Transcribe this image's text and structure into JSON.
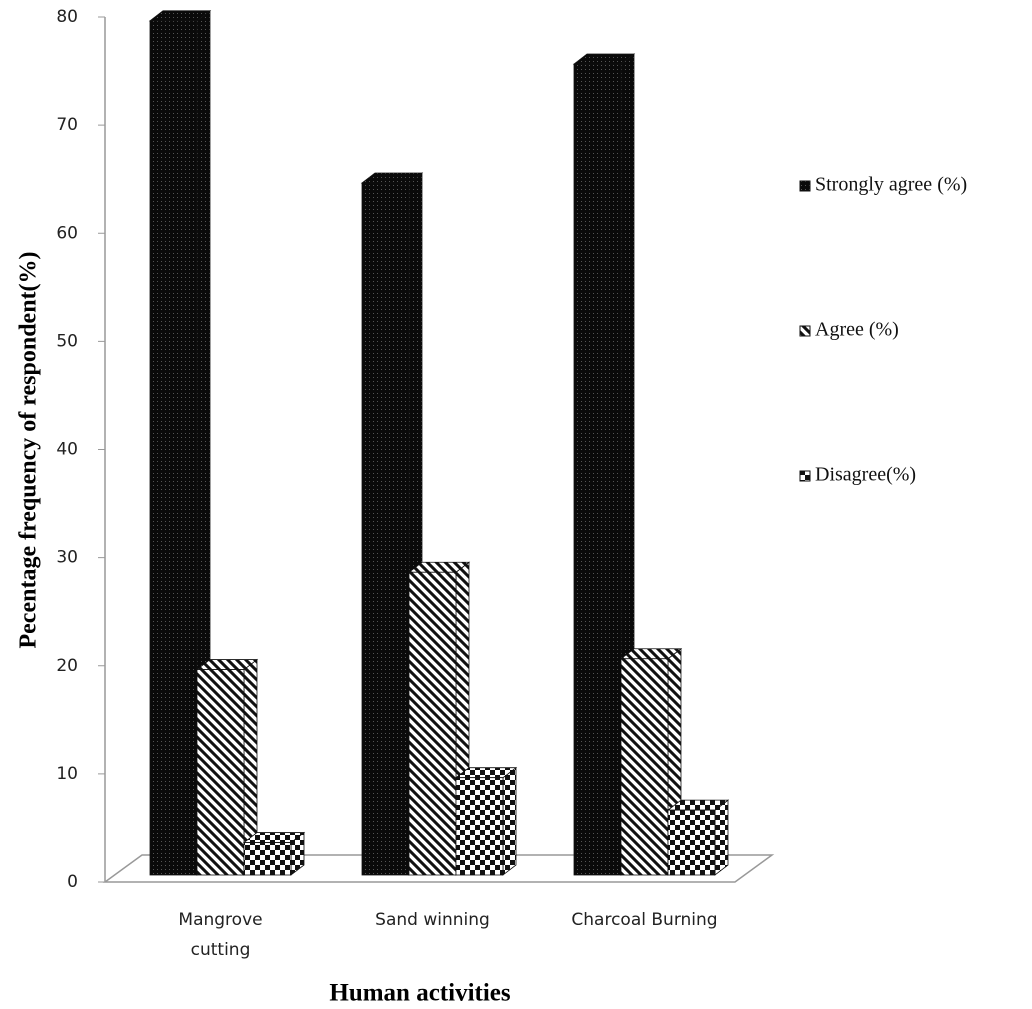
{
  "chart_data": {
    "type": "bar3d",
    "y_label": "Pecentage frequency of respondent(%)",
    "x_label": "Human activities",
    "categories": [
      "Mangrove\ncutting",
      "Sand winning",
      "Charcoal Burning"
    ],
    "series": [
      {
        "name": "Strongly agree (%)",
        "color": "#111111",
        "pattern": "dots",
        "values": [
          79,
          64,
          75
        ]
      },
      {
        "name": "Agree (%)",
        "color": "#111111",
        "pattern": "diagonal",
        "values": [
          19,
          28,
          20
        ]
      },
      {
        "name": "Disagree(%)",
        "color": "#111111",
        "pattern": "checker",
        "values": [
          3,
          9,
          6
        ]
      }
    ],
    "ylim": [
      0,
      80
    ],
    "yticks": [
      0,
      10,
      20,
      30,
      40,
      50,
      60,
      70,
      80
    ]
  }
}
